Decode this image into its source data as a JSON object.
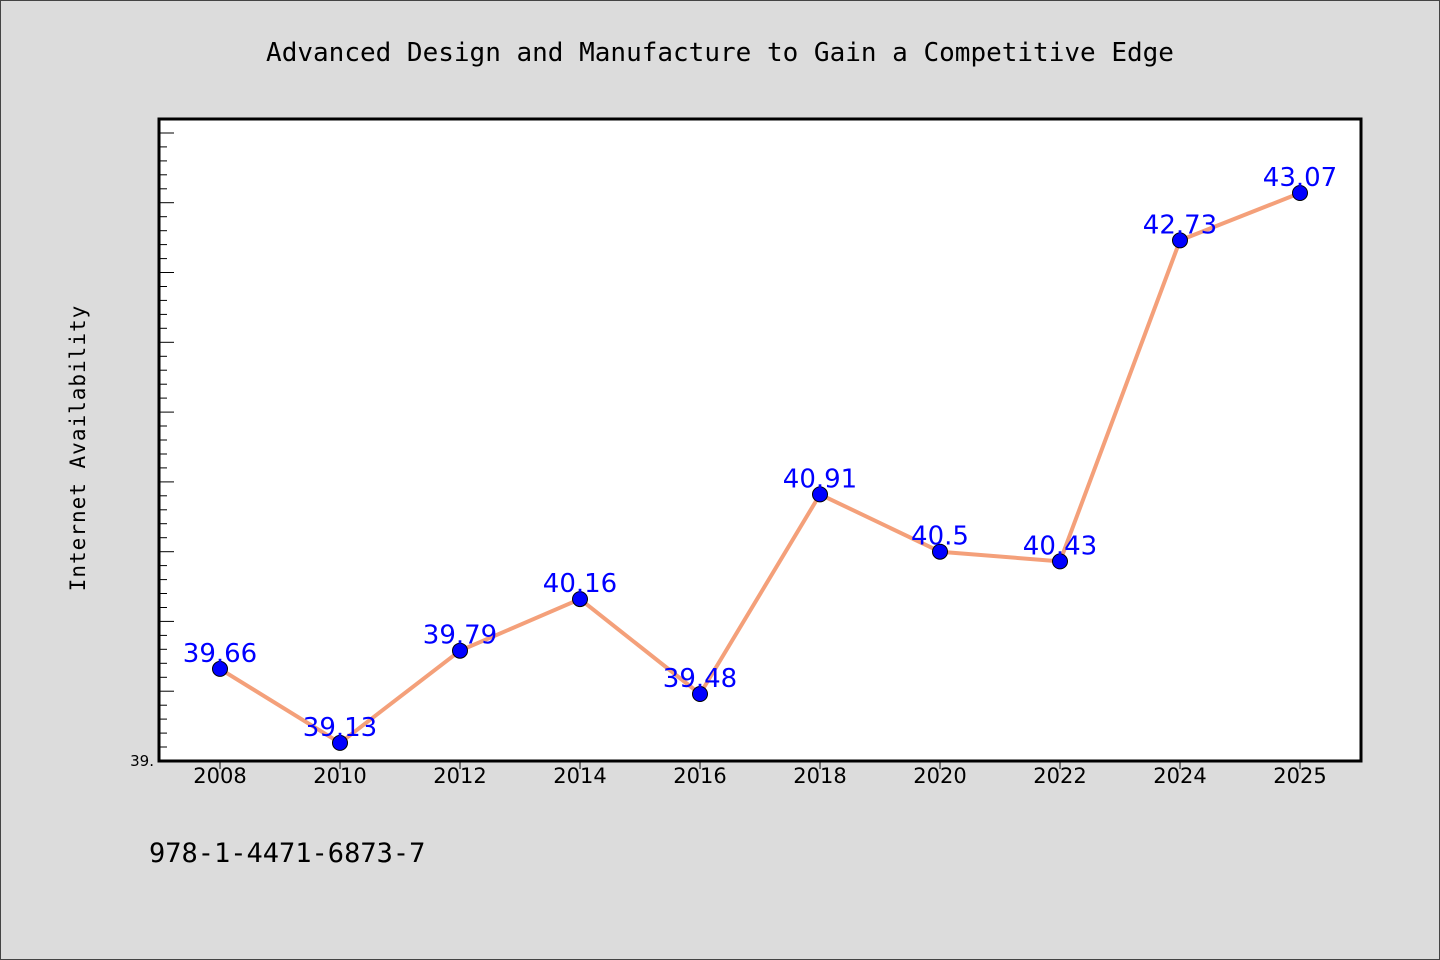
{
  "footer_text": "978-1-4471-6873-7",
  "chart_data": {
    "type": "line",
    "title": "Advanced Design and Manufacture to Gain a Competitive Edge",
    "xlabel": "",
    "ylabel": "Internet Availability",
    "categories": [
      "2008",
      "2010",
      "2012",
      "2014",
      "2016",
      "2018",
      "2020",
      "2022",
      "2024",
      "2025"
    ],
    "series": [
      {
        "values": [
          39.66,
          39.13,
          39.79,
          40.16,
          39.48,
          40.91,
          40.5,
          40.43,
          42.73,
          43.07
        ],
        "data_labels": [
          "39.66",
          "39.13",
          "39.79",
          "40.16",
          "39.48",
          "40.91",
          "40.5",
          "40.43",
          "42.73",
          "43.07"
        ]
      }
    ],
    "ylim": [
      39.0,
      43.6
    ],
    "y_tick_label": "39.",
    "grid": false,
    "legend": "none",
    "colors": {
      "line": "#f4a07a",
      "marker": "#0000ff",
      "data_label": "#0000ff",
      "background": "#dcdcdc",
      "plot_background": "#ffffff"
    }
  }
}
